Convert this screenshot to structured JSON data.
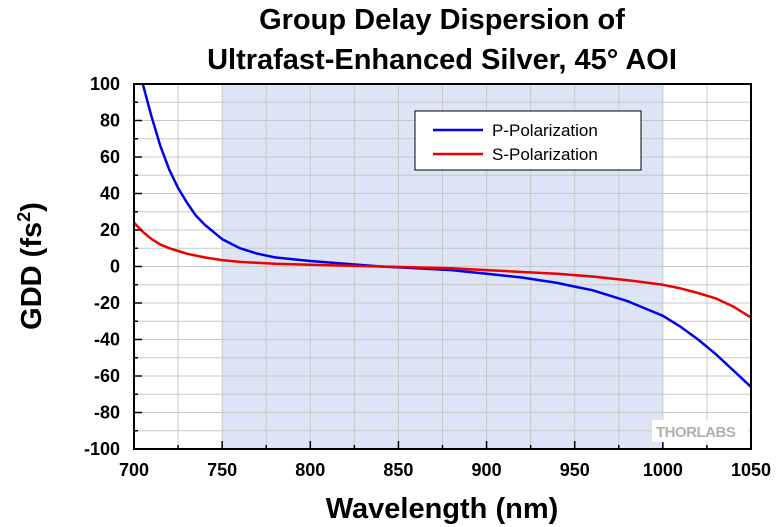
{
  "chart_data": {
    "type": "line",
    "title_lines": [
      "Group Delay Dispersion of",
      "Ultrafast-Enhanced Silver, 45° AOI"
    ],
    "xlabel": "Wavelength (nm)",
    "ylabel_main": "GDD (fs",
    "ylabel_sup": "2",
    "ylabel_tail": ")",
    "xlim": [
      700,
      1050
    ],
    "ylim": [
      -100,
      100
    ],
    "x_ticks": [
      700,
      750,
      800,
      850,
      900,
      950,
      1000,
      1050
    ],
    "y_ticks": [
      100,
      80,
      60,
      40,
      20,
      0,
      -20,
      -40,
      -60,
      -80,
      -100
    ],
    "highlight_band": [
      750,
      1000
    ],
    "grid": true,
    "legend_placement": "top-right",
    "series": [
      {
        "name": "P-Polarization",
        "color": "#0000ee",
        "x": [
          705,
          710,
          715,
          720,
          725,
          730,
          735,
          740,
          745,
          750,
          760,
          770,
          780,
          790,
          800,
          820,
          840,
          860,
          880,
          900,
          920,
          940,
          950,
          960,
          970,
          980,
          990,
          1000,
          1010,
          1020,
          1030,
          1040,
          1050
        ],
        "y": [
          100,
          82,
          66,
          53,
          43,
          35,
          28,
          23,
          19,
          15,
          10,
          7,
          5,
          4,
          3,
          1.5,
          0,
          -1,
          -2,
          -4,
          -6,
          -9,
          -11,
          -13,
          -16,
          -19,
          -23,
          -27,
          -33,
          -40,
          -48,
          -57,
          -66
        ]
      },
      {
        "name": "S-Polarization",
        "color": "#ee0000",
        "x": [
          700,
          705,
          710,
          715,
          720,
          725,
          730,
          740,
          750,
          760,
          780,
          800,
          820,
          840,
          860,
          880,
          900,
          920,
          940,
          960,
          980,
          1000,
          1010,
          1020,
          1030,
          1040,
          1050
        ],
        "y": [
          24,
          19,
          15,
          12,
          10,
          8.5,
          7,
          5,
          3.5,
          2.5,
          1.5,
          1,
          0.5,
          0,
          -0.5,
          -1,
          -2,
          -3,
          -4,
          -5.5,
          -7.5,
          -10,
          -12,
          -14.5,
          -17.5,
          -22,
          -28
        ]
      }
    ]
  },
  "logo": {
    "text": "THORLABS"
  }
}
